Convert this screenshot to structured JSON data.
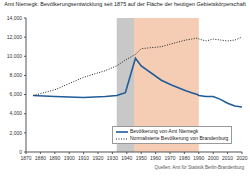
{
  "chart_data": {
    "type": "line",
    "title": "Amt Niemegk: Bevölkerungsentwicklung seit 1875 auf der Fläche der heutigen Gebietskörperschaft",
    "x": [
      1875,
      1890,
      1910,
      1925,
      1933,
      1939,
      1946,
      1950,
      1964,
      1971,
      1981,
      1985,
      1989,
      1990,
      1995,
      2000,
      2005,
      2010,
      2015,
      2020
    ],
    "series": [
      {
        "name": "Bevölkerung von Amt Niemegk",
        "color": "#1f5c99",
        "line_style": "solid",
        "values": [
          5900,
          5800,
          5700,
          5800,
          5900,
          6200,
          9800,
          9000,
          7500,
          7000,
          6400,
          6200,
          6000,
          5900,
          5800,
          5800,
          5500,
          5100,
          4800,
          4700
        ]
      },
      {
        "name": "Normalisierte Bevölkerung von Brandenburg",
        "color": "#222222",
        "line_style": "dotted",
        "values": [
          5900,
          6500,
          7800,
          8500,
          9000,
          9600,
          10200,
          10800,
          11000,
          11300,
          11700,
          11800,
          11900,
          11800,
          11600,
          11800,
          11700,
          11600,
          11700,
          12000
        ]
      }
    ],
    "shaded_periods": [
      {
        "from": 1933,
        "to": 1945,
        "color": "#c8c8c8"
      },
      {
        "from": 1945,
        "to": 1990,
        "color": "#f5cdb4"
      }
    ],
    "xlim": [
      1870,
      2020
    ],
    "xticks": [
      1870,
      1880,
      1890,
      1900,
      1910,
      1920,
      1930,
      1940,
      1950,
      1960,
      1970,
      1980,
      1990,
      2000,
      2010,
      2020
    ],
    "ylim": [
      0,
      14000
    ],
    "yticks": [
      0,
      {
        "value": 2000,
        "label": "2,000"
      },
      {
        "value": 4000,
        "label": "4,000"
      },
      {
        "value": 6000,
        "label": "6,000"
      },
      {
        "value": 8000,
        "label": "8,000"
      },
      {
        "value": 10000,
        "label": "10,000"
      },
      {
        "value": 12000,
        "label": "12,000"
      },
      {
        "value": 14000,
        "label": "14,000"
      }
    ],
    "grid": false,
    "sources": [
      "Quellen: Amt für Statistik Berlin-Brandenburg"
    ]
  }
}
